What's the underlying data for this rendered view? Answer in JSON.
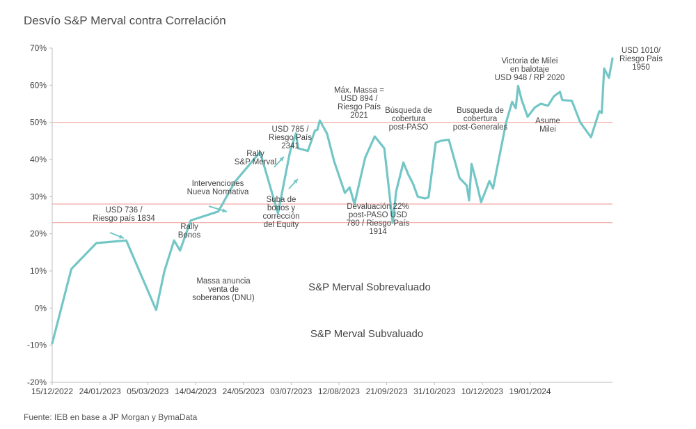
{
  "title": "Desvío S&P Merval contra Correlación",
  "source": "Fuente: IEB en base a JP Morgan y BymaData",
  "chart_data": {
    "type": "line",
    "title": "Desvío S&P Merval contra Correlación",
    "ylim": [
      -20,
      70
    ],
    "y_ticks": [
      -20,
      -10,
      0,
      10,
      20,
      30,
      40,
      50,
      60,
      70
    ],
    "y_tick_labels": [
      "-20%",
      "-10%",
      "0%",
      "10%",
      "20%",
      "30%",
      "40%",
      "50%",
      "60%",
      "70%"
    ],
    "x_tick_labels": [
      "15/12/2022",
      "24/01/2023",
      "05/03/2023",
      "14/04/2023",
      "24/05/2023",
      "03/07/2023",
      "12/08/2023",
      "21/09/2023",
      "31/10/2023",
      "10/12/2023",
      "19/01/2024"
    ],
    "x_range_days": [
      0,
      409
    ],
    "reference_lines": [
      {
        "y": 50,
        "color": "#f2a9a3"
      },
      {
        "y": 28,
        "color": "#f2a9a3"
      },
      {
        "y": 23,
        "color": "#f2a9a3"
      }
    ],
    "series": [
      {
        "color": "#74c6c6",
        "points": [
          [
            0,
            -9.5
          ],
          [
            16,
            10.5
          ],
          [
            37,
            17.5
          ],
          [
            62,
            18.2
          ],
          [
            87,
            -0.5
          ],
          [
            94,
            10
          ],
          [
            102,
            18.2
          ],
          [
            107,
            15.5
          ],
          [
            116,
            23.6
          ],
          [
            139,
            26
          ],
          [
            153,
            34
          ],
          [
            174,
            42
          ],
          [
            189,
            25.5
          ],
          [
            199,
            42
          ],
          [
            204,
            47
          ],
          [
            206,
            43
          ],
          [
            214,
            42.3
          ],
          [
            220,
            47.8
          ],
          [
            222,
            48
          ],
          [
            224,
            50.5
          ],
          [
            230,
            47
          ],
          [
            236,
            39.5
          ],
          [
            245,
            31
          ],
          [
            249,
            32.5
          ],
          [
            253,
            28
          ],
          [
            262,
            40.5
          ],
          [
            270,
            46.2
          ],
          [
            278,
            43
          ],
          [
            285,
            23
          ],
          [
            288,
            31.5
          ],
          [
            294,
            39.2
          ],
          [
            298,
            36
          ],
          [
            302,
            33.5
          ],
          [
            306,
            30
          ],
          [
            312,
            29.5
          ],
          [
            315,
            29.8
          ],
          [
            321,
            44.5
          ],
          [
            325,
            45
          ],
          [
            332,
            45.3
          ],
          [
            341,
            35
          ],
          [
            347,
            33
          ],
          [
            349,
            29
          ],
          [
            351,
            38.8
          ],
          [
            355,
            34
          ],
          [
            359,
            28.5
          ],
          [
            366,
            34.2
          ],
          [
            369,
            32.2
          ],
          [
            380,
            50
          ],
          [
            385,
            55.5
          ],
          [
            388,
            53.8
          ],
          [
            390,
            59.8
          ],
          [
            393,
            56
          ],
          [
            398,
            51.5
          ],
          [
            404,
            54
          ],
          [
            409,
            55
          ],
          [
            415,
            54.5
          ],
          [
            420,
            57
          ],
          [
            425,
            58.2
          ],
          [
            427,
            56
          ],
          [
            435,
            55.8
          ],
          [
            442,
            50
          ],
          [
            451,
            46
          ],
          [
            458,
            53
          ],
          [
            460,
            52.5
          ],
          [
            462,
            64.5
          ],
          [
            466,
            62
          ],
          [
            469,
            67.2
          ]
        ]
      }
    ],
    "annotations": [
      {
        "lines": [
          "USD 736 /",
          "Riesgo país 1834"
        ]
      },
      {
        "lines": [
          "Rally",
          "Bonos"
        ]
      },
      {
        "lines": [
          "Massa anuncia",
          "venta de",
          "soberanos (DNU)"
        ]
      },
      {
        "lines": [
          "Intervenciones",
          "Nueva Normativa"
        ]
      },
      {
        "lines": [
          "Rally",
          "S&P Merval"
        ]
      },
      {
        "lines": [
          "USD 785 /",
          "Riesgo País",
          "2341"
        ]
      },
      {
        "lines": [
          "Suba de",
          "bonos y",
          "corrección",
          "del Equity"
        ]
      },
      {
        "lines": [
          "Máx. Massa =",
          "USD 894 /",
          "Riesgo País",
          "2021"
        ]
      },
      {
        "lines": [
          "Búsqueda de",
          "cobertura",
          "post-PASO"
        ]
      },
      {
        "lines": [
          "Devaluación 22%",
          "post-PASO USD",
          "780 / Riesgo País",
          "1914"
        ]
      },
      {
        "lines": [
          "Busqueda de",
          "cobertura",
          "post-Generales"
        ]
      },
      {
        "lines": [
          "Victoria de Milei",
          "en balotaje",
          "USD 948 / RP 2020"
        ]
      },
      {
        "lines": [
          "Asume",
          "Milei"
        ]
      },
      {
        "lines": [
          "USD 1010/",
          "Riesgo País",
          "1950"
        ]
      }
    ],
    "region_labels": [
      "S&P Merval Sobrevaluado",
      "S&P Merval Subvaluado"
    ]
  }
}
